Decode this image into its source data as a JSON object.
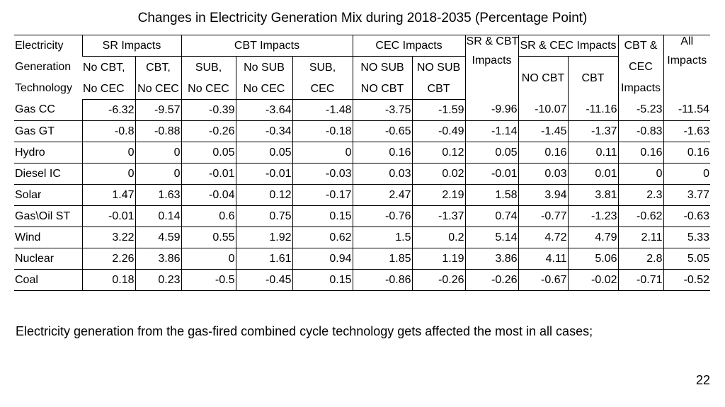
{
  "title": "Changes in Electricity Generation Mix during 2018-2035 (Percentage Point)",
  "table": {
    "row_header": [
      "Electricity",
      "Generation",
      "Technology"
    ],
    "groups": {
      "sr": "SR Impacts",
      "cbt": "CBT Impacts",
      "cec": "CEC Impacts",
      "sr_cbt": [
        "SR & CBT",
        "Impacts"
      ],
      "sr_cec": "SR & CEC Impacts",
      "cbt_cec": [
        "CBT &",
        "CEC",
        "Impacts"
      ],
      "all": [
        "All",
        "Impacts"
      ]
    },
    "subheaders": {
      "sr1": [
        "No CBT,",
        "No CEC"
      ],
      "sr2": [
        "CBT,",
        "No CEC"
      ],
      "cbt1": [
        "SUB,",
        "No CEC"
      ],
      "cbt2": [
        "No SUB",
        "No CEC"
      ],
      "cbt3": [
        "SUB,",
        "CEC"
      ],
      "cec1": [
        "NO SUB",
        "NO CBT"
      ],
      "cec2": [
        "NO SUB",
        "CBT"
      ],
      "srcec1": "NO CBT",
      "srcec2": "CBT"
    },
    "rows": [
      {
        "tech": "Gas CC",
        "values": [
          "-6.32",
          "-9.57",
          "-0.39",
          "-3.64",
          "-1.48",
          "-3.75",
          "-1.59",
          "-9.96",
          "-10.07",
          "-11.16",
          "-5.23",
          "-11.54"
        ]
      },
      {
        "tech": "Gas GT",
        "values": [
          "-0.8",
          "-0.88",
          "-0.26",
          "-0.34",
          "-0.18",
          "-0.65",
          "-0.49",
          "-1.14",
          "-1.45",
          "-1.37",
          "-0.83",
          "-1.63"
        ]
      },
      {
        "tech": "Hydro",
        "values": [
          "0",
          "0",
          "0.05",
          "0.05",
          "0",
          "0.16",
          "0.12",
          "0.05",
          "0.16",
          "0.11",
          "0.16",
          "0.16"
        ]
      },
      {
        "tech": "Diesel IC",
        "values": [
          "0",
          "0",
          "-0.01",
          "-0.01",
          "-0.03",
          "0.03",
          "0.02",
          "-0.01",
          "0.03",
          "0.01",
          "0",
          "0"
        ]
      },
      {
        "tech": "Solar",
        "values": [
          "1.47",
          "1.63",
          "-0.04",
          "0.12",
          "-0.17",
          "2.47",
          "2.19",
          "1.58",
          "3.94",
          "3.81",
          "2.3",
          "3.77"
        ]
      },
      {
        "tech": "Gas\\Oil ST",
        "values": [
          "-0.01",
          "0.14",
          "0.6",
          "0.75",
          "0.15",
          "-0.76",
          "-1.37",
          "0.74",
          "-0.77",
          "-1.23",
          "-0.62",
          "-0.63"
        ]
      },
      {
        "tech": "Wind",
        "values": [
          "3.22",
          "4.59",
          "0.55",
          "1.92",
          "0.62",
          "1.5",
          "0.2",
          "5.14",
          "4.72",
          "4.79",
          "2.11",
          "5.33"
        ]
      },
      {
        "tech": "Nuclear",
        "values": [
          "2.26",
          "3.86",
          "0",
          "1.61",
          "0.94",
          "1.85",
          "1.19",
          "3.86",
          "4.11",
          "5.06",
          "2.8",
          "5.05"
        ]
      },
      {
        "tech": "Coal",
        "values": [
          "0.18",
          "0.23",
          "-0.5",
          "-0.45",
          "0.15",
          "-0.86",
          "-0.26",
          "-0.26",
          "-0.67",
          "-0.02",
          "-0.71",
          "-0.52"
        ]
      }
    ]
  },
  "note": "Electricity generation from the gas-fired combined cycle technology gets affected the most in all cases;",
  "page_number": "22"
}
